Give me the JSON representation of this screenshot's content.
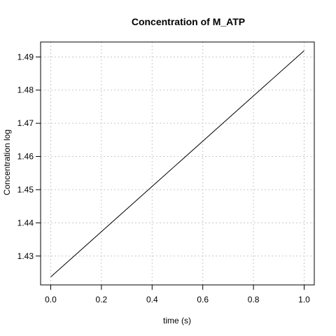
{
  "chart_data": {
    "type": "line",
    "title": "Concentration of M_ATP",
    "xlabel": "time (s)",
    "ylabel": "Concentration log",
    "xlim": [
      -0.04,
      1.04
    ],
    "ylim": [
      1.4213,
      1.4945
    ],
    "x_ticks": [
      0.0,
      0.2,
      0.4,
      0.6,
      0.8,
      1.0
    ],
    "x_tick_labels": [
      "0.0",
      "0.2",
      "0.4",
      "0.6",
      "0.8",
      "1.0"
    ],
    "y_ticks": [
      1.43,
      1.44,
      1.45,
      1.46,
      1.47,
      1.48,
      1.49
    ],
    "y_tick_labels": [
      "1.43",
      "1.44",
      "1.45",
      "1.46",
      "1.47",
      "1.48",
      "1.49"
    ],
    "grid": true,
    "series": [
      {
        "x": [
          0.0,
          1.0
        ],
        "y": [
          1.4237,
          1.4919
        ],
        "color": "#000000"
      }
    ]
  }
}
